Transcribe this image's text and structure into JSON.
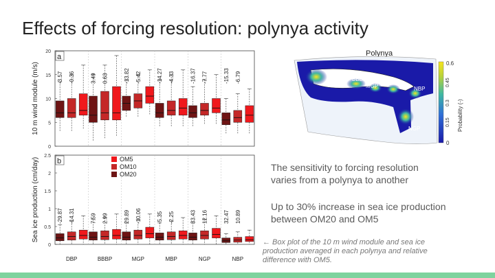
{
  "slide": {
    "title": "Effects of forcing resolution: polynya activity",
    "point1": "The sensitivity to forcing resolution varies from a polynya to another",
    "point2": "Up to 30% increase in sea ice production between OM20 and OM5",
    "caption": "← Box plot of the 10 m wind module and sea ice production averaged in each polynya and relative difference with OM5.",
    "accent_color": "#7ed39e"
  },
  "chart_data": [
    {
      "type": "box",
      "panel_label": "a",
      "ylabel": "10 m wind module (m/s)",
      "ylim": [
        0,
        20
      ],
      "yticks": [
        0,
        5,
        10,
        15,
        20
      ],
      "categories": [
        "DBP",
        "BBBP",
        "MGP",
        "MBP",
        "NGP",
        "NBP"
      ],
      "series_order": [
        "OM20",
        "OM10",
        "OM5"
      ],
      "colors": {
        "OM20": "#6e1414",
        "OM10": "#c42828",
        "OM5": "#f0181c"
      },
      "boxes": [
        [
          {
            "q1": 6,
            "median": 7,
            "q3": 9.5,
            "wlow": 3,
            "whigh": 13.5
          },
          {
            "q1": 6,
            "median": 7,
            "q3": 10,
            "wlow": 3,
            "whigh": 15
          },
          {
            "q1": 6.5,
            "median": 7.5,
            "q3": 11,
            "wlow": 3.5,
            "whigh": 17
          }
        ],
        [
          {
            "q1": 5,
            "median": 6.5,
            "q3": 10.5,
            "wlow": 1,
            "whigh": 15
          },
          {
            "q1": 5.5,
            "median": 7,
            "q3": 11.5,
            "wlow": 1.5,
            "whigh": 17
          },
          {
            "q1": 5.5,
            "median": 7,
            "q3": 12.5,
            "wlow": 2,
            "whigh": 19
          }
        ],
        [
          {
            "q1": 7.5,
            "median": 9,
            "q3": 10.5,
            "wlow": 6,
            "whigh": 14
          },
          {
            "q1": 8,
            "median": 9.5,
            "q3": 11,
            "wlow": 6,
            "whigh": 15
          },
          {
            "q1": 9,
            "median": 10.5,
            "q3": 12.5,
            "wlow": 6.5,
            "whigh": 16
          }
        ],
        [
          {
            "q1": 6,
            "median": 7,
            "q3": 9,
            "wlow": 4,
            "whigh": 14
          },
          {
            "q1": 6.5,
            "median": 7.5,
            "q3": 9.5,
            "wlow": 4,
            "whigh": 15
          },
          {
            "q1": 6.5,
            "median": 8,
            "q3": 10,
            "wlow": 4,
            "whigh": 16
          }
        ],
        [
          {
            "q1": 6,
            "median": 7,
            "q3": 8.5,
            "wlow": 4,
            "whigh": 12.5
          },
          {
            "q1": 6.5,
            "median": 7.5,
            "q3": 9,
            "wlow": 4.5,
            "whigh": 14
          },
          {
            "q1": 7,
            "median": 8,
            "q3": 10,
            "wlow": 4.5,
            "whigh": 15
          }
        ],
        [
          {
            "q1": 4.5,
            "median": 5.5,
            "q3": 7,
            "wlow": 2.5,
            "whigh": 10
          },
          {
            "q1": 5,
            "median": 6,
            "q3": 7.5,
            "wlow": 2.5,
            "whigh": 11
          },
          {
            "q1": 5,
            "median": 6.5,
            "q3": 8.5,
            "wlow": 2.5,
            "whigh": 12
          }
        ]
      ],
      "annotations": [
        [
          "-3.57",
          "-0.36"
        ],
        [
          "3.49",
          "0.63"
        ],
        [
          "-13.82",
          "-5.42"
        ],
        [
          "-14.27",
          "-4.33"
        ],
        [
          "-16.37",
          "-7.77"
        ],
        [
          "-15.33",
          "-6.79"
        ]
      ]
    },
    {
      "type": "box",
      "panel_label": "b",
      "ylabel": "Sea ice production (cm/day)",
      "ylim": [
        0,
        2.5
      ],
      "yticks": [
        0,
        0.5,
        1,
        1.5,
        2,
        2.5
      ],
      "categories": [
        "DBP",
        "BBBP",
        "MGP",
        "MBP",
        "NGP",
        "NBP"
      ],
      "series_order": [
        "OM20",
        "OM10",
        "OM5"
      ],
      "legend": [
        "OM5",
        "OM10",
        "OM20"
      ],
      "legend_position": "top-left",
      "colors": {
        "OM20": "#6e1414",
        "OM10": "#c42828",
        "OM5": "#f0181c"
      },
      "boxes": [
        [
          {
            "q1": 0.1,
            "median": 0.18,
            "q3": 0.3,
            "wlow": 0,
            "whigh": 0.55
          },
          {
            "q1": 0.12,
            "median": 0.22,
            "q3": 0.35,
            "wlow": 0,
            "whigh": 0.65
          },
          {
            "q1": 0.15,
            "median": 0.25,
            "q3": 0.4,
            "wlow": 0,
            "whigh": 0.8
          }
        ],
        [
          {
            "q1": 0.12,
            "median": 0.2,
            "q3": 0.35,
            "wlow": 0,
            "whigh": 0.7
          },
          {
            "q1": 0.13,
            "median": 0.22,
            "q3": 0.38,
            "wlow": 0,
            "whigh": 0.75
          },
          {
            "q1": 0.15,
            "median": 0.25,
            "q3": 0.42,
            "wlow": 0,
            "whigh": 0.85
          }
        ],
        [
          {
            "q1": 0.12,
            "median": 0.2,
            "q3": 0.35,
            "wlow": 0,
            "whigh": 0.6
          },
          {
            "q1": 0.15,
            "median": 0.25,
            "q3": 0.4,
            "wlow": 0,
            "whigh": 0.7
          },
          {
            "q1": 0.18,
            "median": 0.3,
            "q3": 0.48,
            "wlow": 0,
            "whigh": 0.85
          }
        ],
        [
          {
            "q1": 0.12,
            "median": 0.2,
            "q3": 0.32,
            "wlow": 0,
            "whigh": 0.6
          },
          {
            "q1": 0.13,
            "median": 0.22,
            "q3": 0.35,
            "wlow": 0,
            "whigh": 0.65
          },
          {
            "q1": 0.15,
            "median": 0.25,
            "q3": 0.38,
            "wlow": 0,
            "whigh": 0.75
          }
        ],
        [
          {
            "q1": 0.12,
            "median": 0.2,
            "q3": 0.32,
            "wlow": 0,
            "whigh": 0.6
          },
          {
            "q1": 0.15,
            "median": 0.25,
            "q3": 0.38,
            "wlow": 0,
            "whigh": 0.7
          },
          {
            "q1": 0.18,
            "median": 0.28,
            "q3": 0.45,
            "wlow": 0,
            "whigh": 0.8
          }
        ],
        [
          {
            "q1": 0.05,
            "median": 0.1,
            "q3": 0.18,
            "wlow": 0,
            "whigh": 0.3
          },
          {
            "q1": 0.06,
            "median": 0.12,
            "q3": 0.2,
            "wlow": 0,
            "whigh": 0.35
          },
          {
            "q1": 0.08,
            "median": 0.13,
            "q3": 0.22,
            "wlow": 0,
            "whigh": 0.4
          }
        ]
      ],
      "annotations": [
        [
          "-29.87",
          "-14.31"
        ],
        [
          "7.59",
          "2.99"
        ],
        [
          "29.89",
          "-10.06"
        ],
        [
          "-5.35",
          "-2.25"
        ],
        [
          "33.43",
          "12.16"
        ],
        [
          "32.47",
          "10.89"
        ]
      ]
    },
    {
      "type": "heatmap",
      "title": "Polynya",
      "colorbar_label": "Probability (-)",
      "colorbar_ticks": [
        "0",
        "0.15",
        "0.3",
        "0.45",
        "0.6"
      ],
      "colorbar_range": [
        0,
        0.6
      ],
      "region_labels": [
        "DBP",
        "BBBP",
        "MGP",
        "MBP",
        "NGP",
        "NBP"
      ]
    }
  ]
}
